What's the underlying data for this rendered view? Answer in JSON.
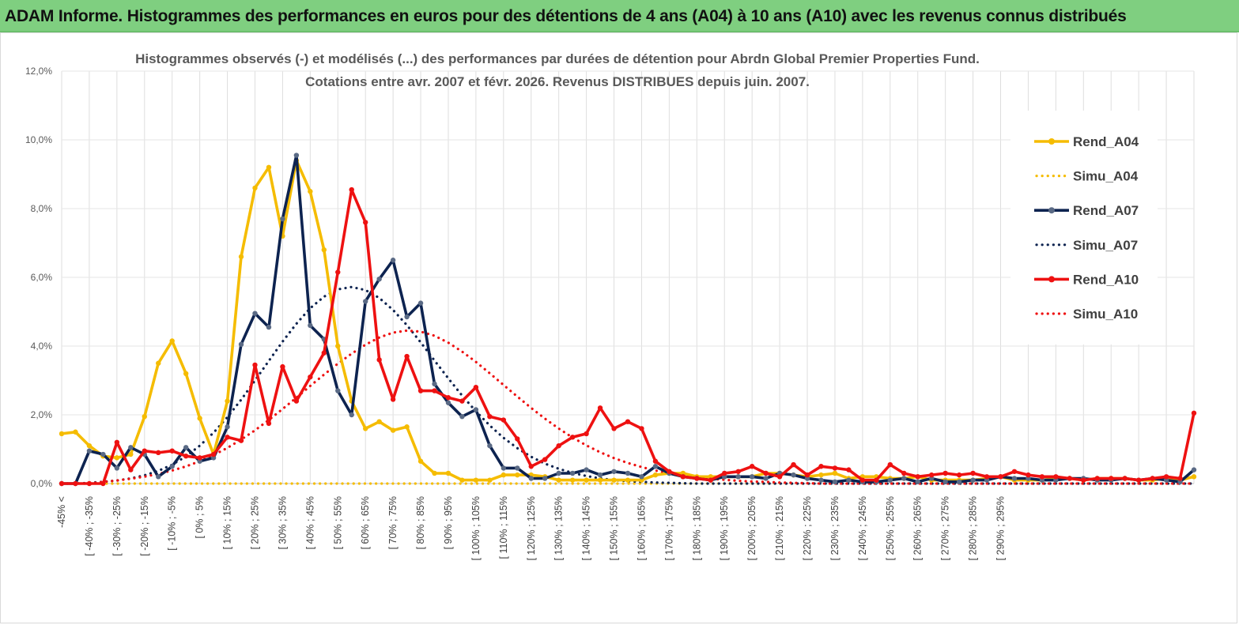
{
  "banner": {
    "title": "ADAM Informe. Histogrammes des performances en euros pour des détentions de 4 ans (A04) à 10 ans (A10) avec les revenus connus distribués"
  },
  "chart_data": {
    "type": "line",
    "title_line1": "Histogrammes observés (-) et modélisés (...) des performances par durées de détention pour Abrdn Global Premier Properties Fund.",
    "title_line2": "Cotations entre avr. 2007 et févr. 2026. Revenus DISTRIBUES depuis juin. 2007.",
    "ylim": [
      0,
      12
    ],
    "yticks": [
      "0,0%",
      "2,0%",
      "4,0%",
      "6,0%",
      "8,0%",
      "10,0%",
      "12,0%"
    ],
    "xlabels": [
      "-45% <",
      "[ -40% ; -35%",
      "[ -30% ; -25%",
      "[ -20% ; -15%",
      "[ -10% ; -5%",
      "[ 0% ; 5%",
      "[ 10% ; 15%",
      "[ 20% ; 25%",
      "[ 30% ; 35%",
      "[ 40% ; 45%",
      "[ 50% ; 55%",
      "[ 60% ; 65%",
      "[ 70% ; 75%",
      "[ 80% ; 85%",
      "[ 90% ; 95%",
      "[ 100% ; 105%",
      "[ 110% ; 115%",
      "[ 120% ; 125%",
      "[ 130% ; 135%",
      "[ 140% ; 145%",
      "[ 150% ; 155%",
      "[ 160% ; 165%",
      "[ 170% ; 175%",
      "[ 180% ; 185%",
      "[ 190% ; 195%",
      "[ 200% ; 205%",
      "[ 210% ; 215%",
      "[ 220% ; 225%",
      "[ 230% ; 235%",
      "[ 240% ; 245%",
      "[ 250% ; 255%",
      "[ 260% ; 265%",
      "[ 270% ; 275%",
      "[ 280% ; 285%",
      "[ 290% ; 295%"
    ],
    "legend": [
      "Rend_A04",
      "Simu_A04",
      "Rend_A07",
      "Simu_A07",
      "Rend_A10",
      "Simu_A10"
    ],
    "series": [
      {
        "name": "Rend_A04",
        "style": "solid",
        "color": "#f5bc00",
        "values": [
          1.45,
          1.5,
          1.1,
          0.8,
          0.75,
          0.85,
          1.95,
          3.5,
          4.15,
          3.2,
          1.9,
          0.85,
          2.4,
          6.6,
          8.6,
          9.2,
          7.2,
          9.4,
          8.5,
          6.8,
          4.0,
          2.4,
          1.6,
          1.8,
          1.55,
          1.65,
          0.65,
          0.3,
          0.3,
          0.1,
          0.1,
          0.1,
          0.25,
          0.25,
          0.25,
          0.2,
          0.1,
          0.1,
          0.1,
          0.1,
          0.1,
          0.1,
          0.1,
          0.25,
          0.3,
          0.3,
          0.2,
          0.2,
          0.2,
          0.2,
          0.2,
          0.3,
          0.3,
          0.25,
          0.2,
          0.25,
          0.3,
          0.15,
          0.2,
          0.2,
          0.15,
          0.15,
          0.2,
          0.1,
          0.1,
          0.1,
          0.1,
          0.15,
          0.2,
          0.1,
          0.1,
          0.1,
          0.15,
          0.15,
          0.1,
          0.15,
          0.15,
          0.15,
          0.1,
          0.1,
          0.15,
          0.1,
          0.2
        ]
      },
      {
        "name": "Simu_A04",
        "style": "dotted",
        "color": "#f5bc00",
        "values": [
          0,
          0,
          0,
          0,
          0,
          0,
          0,
          0,
          0,
          0,
          0,
          0,
          0,
          0,
          0,
          0,
          0,
          0,
          0,
          0,
          0,
          0,
          0,
          0,
          0,
          0,
          0,
          0,
          0,
          0,
          0,
          0,
          0,
          0,
          0,
          0,
          0,
          0,
          0,
          0,
          0,
          0,
          0,
          0,
          0,
          0,
          0,
          0,
          0,
          0,
          0,
          0,
          0,
          0,
          0,
          0,
          0,
          0,
          0,
          0,
          0,
          0,
          0,
          0,
          0,
          0,
          0,
          0,
          0,
          0,
          0,
          0,
          0,
          0,
          0,
          0,
          0,
          0,
          0,
          0,
          0,
          0,
          0
        ]
      },
      {
        "name": "Rend_A07",
        "style": "solid",
        "color": "#0d2350",
        "values": [
          0,
          0,
          0.95,
          0.85,
          0.45,
          1.05,
          0.85,
          0.2,
          0.5,
          1.05,
          0.65,
          0.75,
          1.65,
          4.05,
          4.95,
          4.55,
          7.7,
          9.55,
          4.6,
          4.2,
          2.7,
          2.0,
          5.3,
          5.95,
          6.5,
          4.85,
          5.25,
          2.9,
          2.35,
          1.95,
          2.15,
          1.1,
          0.45,
          0.45,
          0.15,
          0.15,
          0.3,
          0.3,
          0.4,
          0.25,
          0.35,
          0.3,
          0.2,
          0.5,
          0.3,
          0.2,
          0.15,
          0.1,
          0.2,
          0.2,
          0.2,
          0.15,
          0.3,
          0.25,
          0.15,
          0.1,
          0.05,
          0.1,
          0.05,
          0.05,
          0.1,
          0.15,
          0.05,
          0.15,
          0.05,
          0.05,
          0.1,
          0.1,
          0.2,
          0.15,
          0.15,
          0.1,
          0.1,
          0.15,
          0.15,
          0.1,
          0.1,
          0.15,
          0.1,
          0.15,
          0.1,
          0.05,
          0.4
        ]
      },
      {
        "name": "Simu_A07",
        "style": "dotted",
        "color": "#0d2350",
        "values": [
          0,
          0,
          0.02,
          0.05,
          0.09,
          0.15,
          0.24,
          0.37,
          0.55,
          0.79,
          1.1,
          1.48,
          1.93,
          2.44,
          3.0,
          3.57,
          4.13,
          4.65,
          5.1,
          5.44,
          5.65,
          5.72,
          5.63,
          5.4,
          5.05,
          4.61,
          4.11,
          3.58,
          3.06,
          2.56,
          2.1,
          1.69,
          1.33,
          1.03,
          0.78,
          0.58,
          0.43,
          0.31,
          0.22,
          0.15,
          0.1,
          0.07,
          0.05,
          0.03,
          0.02,
          0.01,
          0,
          0,
          0,
          0,
          0,
          0,
          0,
          0,
          0,
          0,
          0,
          0,
          0,
          0,
          0,
          0,
          0,
          0,
          0,
          0,
          0,
          0,
          0,
          0,
          0,
          0,
          0,
          0,
          0,
          0,
          0,
          0,
          0,
          0,
          0,
          0,
          0
        ]
      },
      {
        "name": "Rend_A10",
        "style": "solid",
        "color": "#ee1111",
        "values": [
          0,
          0,
          0,
          0,
          1.2,
          0.4,
          0.95,
          0.9,
          0.95,
          0.8,
          0.75,
          0.85,
          1.35,
          1.25,
          3.45,
          1.75,
          3.4,
          2.4,
          3.1,
          3.8,
          6.15,
          8.55,
          7.6,
          3.6,
          2.45,
          3.7,
          2.7,
          2.7,
          2.5,
          2.4,
          2.8,
          1.95,
          1.85,
          1.3,
          0.5,
          0.7,
          1.1,
          1.35,
          1.45,
          2.2,
          1.6,
          1.8,
          1.6,
          0.65,
          0.35,
          0.2,
          0.15,
          0.1,
          0.3,
          0.35,
          0.5,
          0.3,
          0.2,
          0.55,
          0.25,
          0.5,
          0.45,
          0.4,
          0.1,
          0.1,
          0.55,
          0.3,
          0.2,
          0.25,
          0.3,
          0.25,
          0.3,
          0.2,
          0.2,
          0.35,
          0.25,
          0.2,
          0.2,
          0.15,
          0.1,
          0.15,
          0.15,
          0.15,
          0.1,
          0.15,
          0.2,
          0.15,
          2.05
        ]
      },
      {
        "name": "Simu_A10",
        "style": "dotted",
        "color": "#ee1111",
        "values": [
          0,
          0,
          0,
          0.05,
          0.09,
          0.14,
          0.2,
          0.28,
          0.38,
          0.5,
          0.65,
          0.83,
          1.04,
          1.28,
          1.55,
          1.85,
          2.17,
          2.5,
          2.84,
          3.17,
          3.49,
          3.78,
          4.04,
          4.25,
          4.39,
          4.45,
          4.42,
          4.3,
          4.1,
          3.84,
          3.54,
          3.21,
          2.87,
          2.53,
          2.2,
          1.89,
          1.6,
          1.34,
          1.11,
          0.91,
          0.74,
          0.6,
          0.48,
          0.38,
          0.3,
          0.23,
          0.18,
          0.14,
          0.11,
          0.08,
          0.06,
          0.05,
          0.03,
          0.02,
          0.01,
          0,
          0,
          0,
          0,
          0,
          0,
          0,
          0,
          0,
          0,
          0,
          0,
          0,
          0,
          0,
          0,
          0,
          0,
          0,
          0,
          0,
          0,
          0,
          0,
          0,
          0,
          0,
          0
        ]
      }
    ]
  }
}
